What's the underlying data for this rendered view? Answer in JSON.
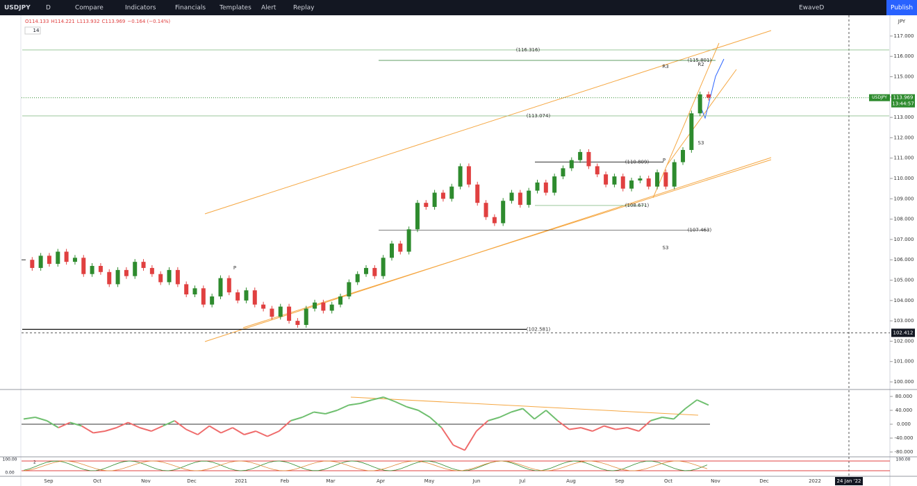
{
  "toolbar": {
    "symbol": "USDJPY",
    "interval": "D",
    "buttons": [
      "Compare",
      "Indicators",
      "Financials",
      "Templates",
      "Alert",
      "Replay"
    ],
    "layout": "EwaveD",
    "publish": "Publish"
  },
  "legend": {
    "ohlc": [
      "O114.133",
      "H114.221",
      "L113.932",
      "C113.969",
      "−0.164 (−0.14%)"
    ],
    "indicator_count": "14",
    "currency": "JPY"
  },
  "chart_data": {
    "type": "candlestick",
    "closes": [
      106.0,
      105.6,
      106.2,
      105.8,
      106.4,
      105.9,
      106.1,
      105.3,
      105.7,
      105.4,
      104.8,
      105.5,
      105.2,
      105.9,
      105.6,
      105.3,
      104.9,
      105.5,
      104.8,
      104.3,
      104.6,
      103.8,
      104.2,
      105.1,
      104.4,
      104.0,
      104.5,
      103.8,
      103.6,
      103.2,
      103.7,
      103.0,
      102.8,
      103.6,
      103.9,
      103.5,
      103.8,
      104.2,
      104.9,
      105.3,
      105.6,
      105.2,
      106.1,
      106.8,
      106.4,
      107.5,
      108.8,
      108.6,
      109.3,
      109.0,
      109.6,
      110.6,
      109.7,
      108.8,
      108.1,
      107.8,
      108.9,
      109.3,
      108.7,
      109.4,
      109.8,
      109.3,
      110.1,
      110.5,
      110.9,
      111.3,
      110.6,
      110.2,
      109.7,
      110.1,
      109.5,
      109.9,
      110.0,
      109.6,
      110.3,
      109.6,
      110.8,
      111.4,
      113.2,
      114.133,
      113.969
    ],
    "ylim": [
      99.66,
      118.02
    ],
    "yticks": [
      {
        "value": 117,
        "label": "117.000"
      },
      {
        "value": 116,
        "label": "116.000"
      },
      {
        "value": 115,
        "label": "115.000"
      },
      {
        "value": 114,
        "label": "114.000"
      },
      {
        "value": 113,
        "label": "113.000"
      },
      {
        "value": 112,
        "label": "112.000"
      },
      {
        "value": 111,
        "label": "111.000"
      },
      {
        "value": 110,
        "label": "110.000"
      },
      {
        "value": 109,
        "label": "109.000"
      },
      {
        "value": 108,
        "label": "108.000"
      },
      {
        "value": 107,
        "label": "107.000"
      },
      {
        "value": 106,
        "label": "106.000"
      },
      {
        "value": 105,
        "label": "105.000"
      },
      {
        "value": 104,
        "label": "104.000"
      },
      {
        "value": 103,
        "label": "103.000"
      },
      {
        "value": 102,
        "label": "102.000"
      },
      {
        "value": 101,
        "label": "101.000"
      },
      {
        "value": 100,
        "label": "100.000"
      }
    ],
    "x_labels": [
      "Sep",
      "Oct",
      "Nov",
      "Dec",
      "2021",
      "Feb",
      "Mar",
      "Apr",
      "May",
      "Jun",
      "Jul",
      "Aug",
      "Sep",
      "Oct",
      "Nov",
      "Dec",
      "2022"
    ],
    "levels": [
      {
        "value": 116.316,
        "label": "(116.316)"
      },
      {
        "value": 115.801,
        "label": "(115.801)"
      },
      {
        "value": 113.074,
        "label": "(113.074)"
      },
      {
        "value": 110.809,
        "label": "(110.809)"
      },
      {
        "value": 108.671,
        "label": "(108.671)"
      },
      {
        "value": 107.463,
        "label": "(107.463)"
      },
      {
        "value": 102.581,
        "label": "(102.581)"
      }
    ],
    "pivots": [
      "R3",
      "R2",
      "S3",
      "S3",
      "P",
      "P"
    ],
    "last_price": {
      "value": 113.969,
      "label": "113.969"
    },
    "countdown": "13:44:57",
    "crosshair": {
      "value": 102.412,
      "label": "102.412"
    },
    "crosshair_date": "24 Jan '22"
  },
  "oscillator": {
    "ylim": [
      -92,
      98
    ],
    "yticks": [
      {
        "value": 80,
        "label": "80.000"
      },
      {
        "value": 40,
        "label": "40.000"
      },
      {
        "value": 0,
        "label": "0.000"
      },
      {
        "value": -40,
        "label": "-40.000"
      },
      {
        "value": -80,
        "label": "-80.000"
      }
    ],
    "values": [
      15,
      20,
      10,
      -10,
      5,
      -5,
      -25,
      -20,
      -10,
      5,
      -10,
      -20,
      -5,
      10,
      -15,
      -30,
      -5,
      -25,
      -10,
      -30,
      -20,
      -35,
      -20,
      10,
      20,
      35,
      30,
      40,
      55,
      60,
      70,
      78,
      65,
      50,
      40,
      20,
      -10,
      -60,
      -75,
      -20,
      10,
      20,
      35,
      45,
      15,
      40,
      10,
      -15,
      -10,
      -20,
      -5,
      -15,
      -10,
      -20,
      10,
      20,
      15,
      45,
      70,
      55
    ]
  },
  "stoch": {
    "left_labels": [
      "100.00",
      "0.00"
    ],
    "right_label": "100.00",
    "count": "2"
  }
}
